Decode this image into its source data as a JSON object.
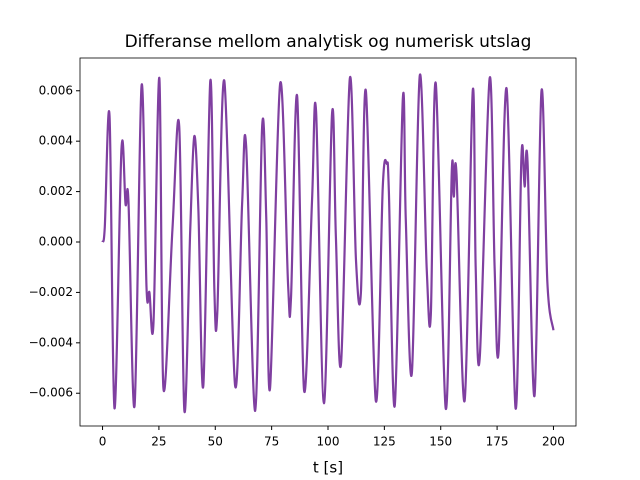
{
  "chart_data": {
    "type": "line",
    "title": "Differanse mellom analytisk og numerisk utslag",
    "x_label": "t [s]",
    "xlim": [
      -10,
      210
    ],
    "ylim": [
      -0.0073,
      0.0073
    ],
    "xticks": [
      0,
      25,
      50,
      75,
      100,
      125,
      150,
      175,
      200
    ],
    "yticks": [
      {
        "value": -0.006,
        "label": "−0.006"
      },
      {
        "value": -0.004,
        "label": "−0.004"
      },
      {
        "value": -0.002,
        "label": "−0.002"
      },
      {
        "value": 0,
        "label": "0.000"
      },
      {
        "value": 0.002,
        "label": "0.002"
      },
      {
        "value": 0.004,
        "label": "0.004"
      },
      {
        "value": 0.006,
        "label": "0.006"
      }
    ],
    "series": [
      {
        "color": "#7f3fa0",
        "x": [
          0,
          1,
          3.1,
          5.3,
          8.4,
          10.2,
          11.5,
          14.2,
          17.3,
          19.5,
          20.8,
          22.6,
          25.2,
          27,
          31,
          34,
          36.3,
          38.9,
          40.7,
          42.5,
          44.7,
          47.8,
          49.6,
          50.9,
          54,
          58.8,
          61.9,
          63.7,
          67.7,
          70.8,
          72.6,
          74.3,
          78.8,
          82.3,
          83.6,
          86.3,
          89.4,
          92.9,
          94.7,
          98.2,
          101.8,
          103.5,
          105.8,
          109.7,
          112.4,
          114.6,
          116.8,
          121.2,
          124.3,
          126.1,
          127,
          129.6,
          133.2,
          134.5,
          137.2,
          140.7,
          143.8,
          145.6,
          147.8,
          152.2,
          154.9,
          155.8,
          157,
          160.6,
          164.2,
          165.5,
          167.3,
          171.7,
          173.9,
          175.7,
          179.2,
          183.2,
          185.8,
          187.2,
          188.5,
          191.6,
          194.7,
          197.3,
          200
        ],
        "values": [
          0,
          0.0006,
          0.005,
          -0.0066,
          0.0037,
          0.0015,
          0.0016,
          -0.0065,
          0.0062,
          -0.0018,
          -0.002,
          -0.0032,
          0.0065,
          -0.0058,
          0.0005,
          0.0046,
          -0.0067,
          0.0005,
          0.0042,
          0.0013,
          -0.0057,
          0.0064,
          -0.0019,
          -0.0028,
          0.0064,
          -0.0057,
          0.0015,
          0.0038,
          -0.0067,
          0.0046,
          0.001,
          -0.0058,
          0.0063,
          -0.0017,
          -0.0022,
          0.0058,
          -0.0059,
          0.0016,
          0.0052,
          -0.0064,
          0.0051,
          0.0002,
          -0.0048,
          0.0065,
          -0.0007,
          -0.002,
          0.006,
          -0.0063,
          0.0022,
          0.0031,
          0.002,
          -0.0065,
          0.0057,
          0.0009,
          -0.0052,
          0.0066,
          -0.0011,
          -0.0029,
          0.0063,
          -0.0066,
          0.0028,
          0.0018,
          0.0027,
          -0.0063,
          0.006,
          -0.001,
          -0.0046,
          0.0065,
          -0.001,
          -0.0043,
          0.0061,
          -0.0066,
          0.0034,
          0.0022,
          0.0032,
          -0.0061,
          0.006,
          -0.0016,
          -0.0035
        ]
      }
    ]
  }
}
